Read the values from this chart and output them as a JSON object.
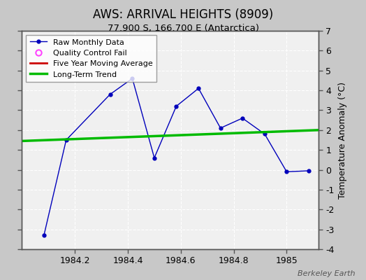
{
  "title": "AWS: ARRIVAL HEIGHTS (8909)",
  "subtitle": "77.900 S, 166.700 E (Antarctica)",
  "ylabel": "Temperature Anomaly (°C)",
  "watermark": "Berkeley Earth",
  "raw_x": [
    1984.083,
    1984.167,
    1984.333,
    1984.417,
    1984.5,
    1984.583,
    1984.667,
    1984.75,
    1984.833,
    1984.917,
    1985.0,
    1985.083
  ],
  "raw_y": [
    -3.3,
    1.5,
    3.8,
    4.6,
    0.6,
    3.2,
    4.1,
    2.1,
    2.6,
    1.8,
    -0.1,
    -0.05
  ],
  "trend_x": [
    1984.0,
    1985.12
  ],
  "trend_y": [
    1.45,
    2.0
  ],
  "xlim": [
    1984.0,
    1985.12
  ],
  "ylim": [
    -4,
    7
  ],
  "yticks": [
    -4,
    -3,
    -2,
    -1,
    0,
    1,
    2,
    3,
    4,
    5,
    6,
    7
  ],
  "xticks": [
    1984.2,
    1984.4,
    1984.6,
    1984.8,
    1985.0
  ],
  "xtick_labels": [
    "1984.2",
    "1984.4",
    "1984.6",
    "1984.8",
    "1985"
  ],
  "raw_color": "#0000bb",
  "trend_color": "#00bb00",
  "mavg_color": "#cc0000",
  "qc_color": "#ff44ff",
  "bg_color": "#c8c8c8",
  "plot_bg_color": "#f0f0f0",
  "grid_color": "#ffffff",
  "title_fontsize": 12,
  "subtitle_fontsize": 9.5,
  "tick_fontsize": 9,
  "ylabel_fontsize": 9
}
